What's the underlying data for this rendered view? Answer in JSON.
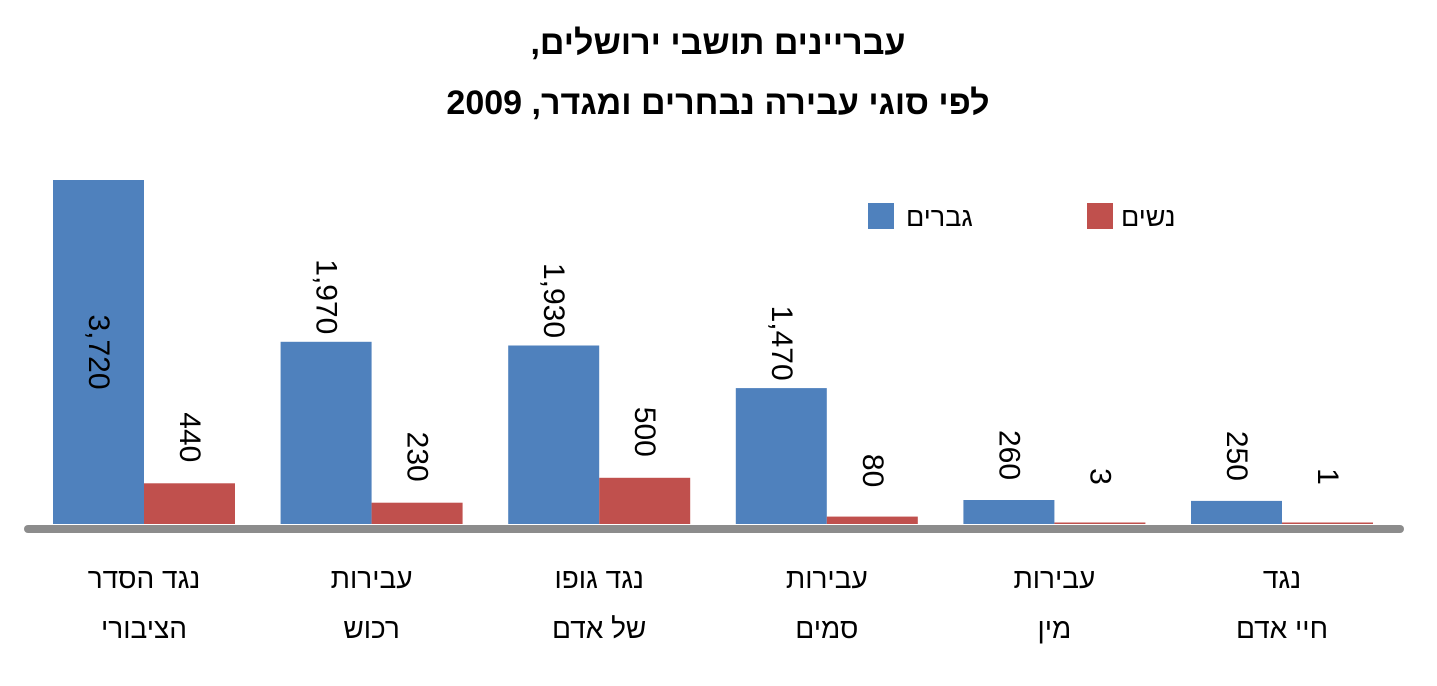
{
  "chart_data": {
    "type": "bar",
    "title_lines": [
      "עבריינים תושבי ירושלים,",
      "לפי סוגי עבירה נבחרים ומגדר, 2009"
    ],
    "categories": [
      [
        "נגד הסדר",
        "הציבורי"
      ],
      [
        "עבירות",
        "רכוש"
      ],
      [
        "נגד גופו",
        "של אדם"
      ],
      [
        "עבירות",
        "סמים"
      ],
      [
        "עבירות",
        "מין"
      ],
      [
        "נגד",
        "חיי אדם"
      ]
    ],
    "series": [
      {
        "name": "גברים",
        "color": "#4F81BD",
        "values": [
          3720,
          1970,
          1930,
          1470,
          260,
          250
        ],
        "labels": [
          "3,720",
          "1,970",
          "1,930",
          "1,470",
          "260",
          "250"
        ]
      },
      {
        "name": "נשים",
        "color": "#C0504D",
        "values": [
          440,
          230,
          500,
          80,
          3,
          1
        ],
        "labels": [
          "440",
          "230",
          "500",
          "80",
          "3",
          "1"
        ]
      }
    ],
    "ylim": [
      0,
      3720
    ],
    "legend_position": "top-right",
    "axis_color": "#8C8C8C"
  }
}
